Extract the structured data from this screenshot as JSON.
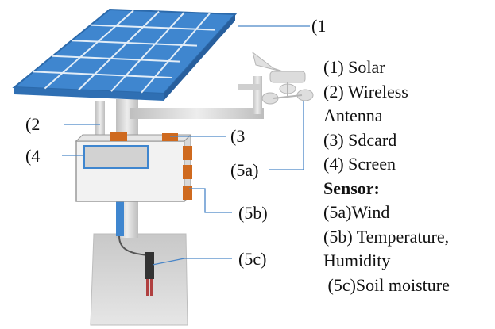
{
  "callouts": {
    "solar": "(1",
    "antenna": "(2",
    "sdcard": "(3",
    "screen": "(4",
    "wind": "(5a)",
    "temperature": "(5b)",
    "soil": "(5c)"
  },
  "legend": {
    "solar": "(1) Solar",
    "wireless": "(2) Wireless",
    "antenna": "Antenna",
    "sdcard": "(3) Sdcard",
    "screen": "(4) Screen",
    "sensor_heading": "Sensor:",
    "wind": "(5a)Wind",
    "temperature": "(5b) Temperature,",
    "humidity": "Humidity",
    "soil": " (5c)Soil moisture"
  },
  "colors": {
    "panel": "#3f86cf",
    "panel_edge": "#2c6aab",
    "pole": "#d7d7d7",
    "box": "#f2f2f2",
    "sensor_port": "#cf6a1f",
    "ground": "#d9d9d9",
    "leader_line": "#4a86c8"
  }
}
